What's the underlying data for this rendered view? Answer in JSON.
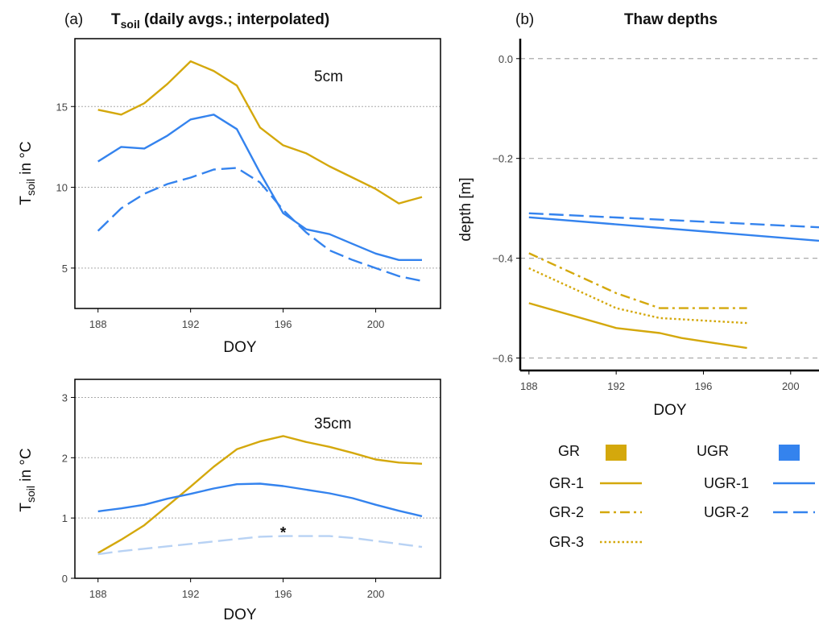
{
  "colors": {
    "gr": "#D4A80C",
    "ugr": "#3483EE",
    "ugr_light": "#B8D2F4",
    "grid": "#AAAAAA",
    "frame": "#000000"
  },
  "chart_data": [
    {
      "id": "t5",
      "type": "line",
      "panel_letter": "(a)",
      "title": "Tsoil (daily avgs.; interpolated)",
      "title_main": "T",
      "title_sub": "soil",
      "title_rest": " (daily avgs.; interpolated)",
      "annotation": "5cm",
      "xlabel": "DOY",
      "ylabel_main": "T",
      "ylabel_sub": "soil",
      "ylabel_rest": " in °C",
      "xlim": [
        187.0,
        202.8
      ],
      "ylim": [
        2.5,
        19.2
      ],
      "xticks": [
        188,
        192,
        196,
        200
      ],
      "yticks": [
        5,
        10,
        15
      ],
      "xtick_labels": [
        "188",
        "192",
        "196",
        "200"
      ],
      "ytick_labels": [
        "5",
        "10",
        "15"
      ],
      "grid": "horizontal dotted",
      "series": [
        {
          "color_key": "gr",
          "dash": "solid",
          "x": [
            188,
            189,
            190,
            191,
            192,
            193,
            194,
            195,
            196,
            197,
            198,
            199,
            200,
            201,
            202
          ],
          "y": [
            14.8,
            14.5,
            15.2,
            16.4,
            17.8,
            17.2,
            16.3,
            13.7,
            12.6,
            12.1,
            11.3,
            10.6,
            9.9,
            9.0,
            9.4
          ]
        },
        {
          "color_key": "ugr",
          "dash": "solid",
          "x": [
            188,
            189,
            190,
            191,
            192,
            193,
            194,
            195,
            196,
            197,
            198,
            199,
            200,
            201,
            202
          ],
          "y": [
            11.6,
            12.5,
            12.4,
            13.2,
            14.2,
            14.5,
            13.6,
            10.9,
            8.4,
            7.4,
            7.1,
            6.5,
            5.9,
            5.5,
            5.5
          ]
        },
        {
          "color_key": "ugr",
          "dash": "longdash",
          "x": [
            188,
            189,
            190,
            191,
            192,
            193,
            194,
            195,
            196,
            197,
            198,
            199,
            200,
            201,
            202
          ],
          "y": [
            7.3,
            8.7,
            9.6,
            10.2,
            10.6,
            11.1,
            11.2,
            10.3,
            8.6,
            7.2,
            6.1,
            5.5,
            5.0,
            4.5,
            4.2
          ]
        }
      ]
    },
    {
      "id": "t35",
      "type": "line",
      "annotation": "35cm",
      "marker_label": "*",
      "marker_x": 196,
      "marker_y": 0.78,
      "xlabel": "DOY",
      "ylabel_main": "T",
      "ylabel_sub": "soil",
      "ylabel_rest": " in °C",
      "xlim": [
        187.0,
        202.8
      ],
      "ylim": [
        0,
        3.3
      ],
      "xticks": [
        188,
        192,
        196,
        200
      ],
      "yticks": [
        0,
        1,
        2,
        3
      ],
      "xtick_labels": [
        "188",
        "192",
        "196",
        "200"
      ],
      "ytick_labels": [
        "0",
        "1",
        "2",
        "3"
      ],
      "grid": "horizontal dotted",
      "series": [
        {
          "color_key": "gr",
          "dash": "solid",
          "x": [
            188,
            189,
            190,
            191,
            192,
            193,
            194,
            195,
            196,
            197,
            198,
            199,
            200,
            201,
            202
          ],
          "y": [
            0.42,
            0.64,
            0.88,
            1.2,
            1.52,
            1.85,
            2.14,
            2.27,
            2.36,
            2.26,
            2.18,
            2.08,
            1.97,
            1.92,
            1.9
          ]
        },
        {
          "color_key": "ugr",
          "dash": "solid",
          "x": [
            188,
            189,
            190,
            191,
            192,
            193,
            194,
            195,
            196,
            197,
            198,
            199,
            200,
            201,
            202
          ],
          "y": [
            1.11,
            1.16,
            1.22,
            1.32,
            1.4,
            1.49,
            1.56,
            1.57,
            1.53,
            1.47,
            1.41,
            1.33,
            1.22,
            1.12,
            1.03
          ]
        },
        {
          "color_key": "ugr_light",
          "dash": "longdash",
          "x": [
            188,
            189,
            190,
            191,
            192,
            193,
            194,
            195,
            196,
            197,
            198,
            199,
            200,
            201,
            202
          ],
          "y": [
            0.4,
            0.45,
            0.49,
            0.53,
            0.57,
            0.61,
            0.65,
            0.69,
            0.7,
            0.7,
            0.7,
            0.67,
            0.62,
            0.57,
            0.52
          ]
        }
      ]
    },
    {
      "id": "thaw",
      "type": "line",
      "panel_letter": "(b)",
      "title": "Thaw depths",
      "xlabel": "DOY",
      "ylabel": "depth [m]",
      "xlim": [
        187.6,
        201.3
      ],
      "ylim": [
        -0.625,
        0.04
      ],
      "xticks": [
        188,
        192,
        196,
        200
      ],
      "yticks": [
        0.0,
        -0.2,
        -0.4,
        -0.6
      ],
      "xtick_labels": [
        "188",
        "192",
        "196",
        "200"
      ],
      "ytick_labels": [
        "0.0",
        "−0.2",
        "−0.4",
        "−0.6"
      ],
      "grid": "horizontal dashed",
      "series": [
        {
          "name": "GR-1",
          "color_key": "gr",
          "dash": "solid",
          "x": [
            188,
            192,
            194,
            195,
            198
          ],
          "y": [
            -0.49,
            -0.54,
            -0.55,
            -0.56,
            -0.58
          ]
        },
        {
          "name": "GR-2",
          "color_key": "gr",
          "dash": "dashdot",
          "x": [
            188,
            192,
            194,
            198
          ],
          "y": [
            -0.39,
            -0.47,
            -0.5,
            -0.5
          ]
        },
        {
          "name": "GR-3",
          "color_key": "gr",
          "dash": "dotted",
          "x": [
            188,
            192,
            194,
            198
          ],
          "y": [
            -0.42,
            -0.5,
            -0.52,
            -0.53
          ]
        },
        {
          "name": "UGR-1",
          "color_key": "ugr",
          "dash": "solid",
          "x": [
            188,
            201.3
          ],
          "y": [
            -0.318,
            -0.365
          ]
        },
        {
          "name": "UGR-2",
          "color_key": "ugr",
          "dash": "longdash",
          "x": [
            188,
            201.3
          ],
          "y": [
            -0.31,
            -0.338
          ]
        }
      ]
    }
  ],
  "legend": {
    "groups": [
      {
        "label": "GR",
        "color_key": "gr"
      },
      {
        "label": "UGR",
        "color_key": "ugr"
      }
    ],
    "lines": [
      {
        "label": "GR-1",
        "color_key": "gr",
        "dash": "solid"
      },
      {
        "label": "GR-2",
        "color_key": "gr",
        "dash": "dashdot"
      },
      {
        "label": "GR-3",
        "color_key": "gr",
        "dash": "dotted"
      },
      {
        "label": "UGR-1",
        "color_key": "ugr",
        "dash": "solid"
      },
      {
        "label": "UGR-2",
        "color_key": "ugr",
        "dash": "longdash"
      }
    ]
  }
}
